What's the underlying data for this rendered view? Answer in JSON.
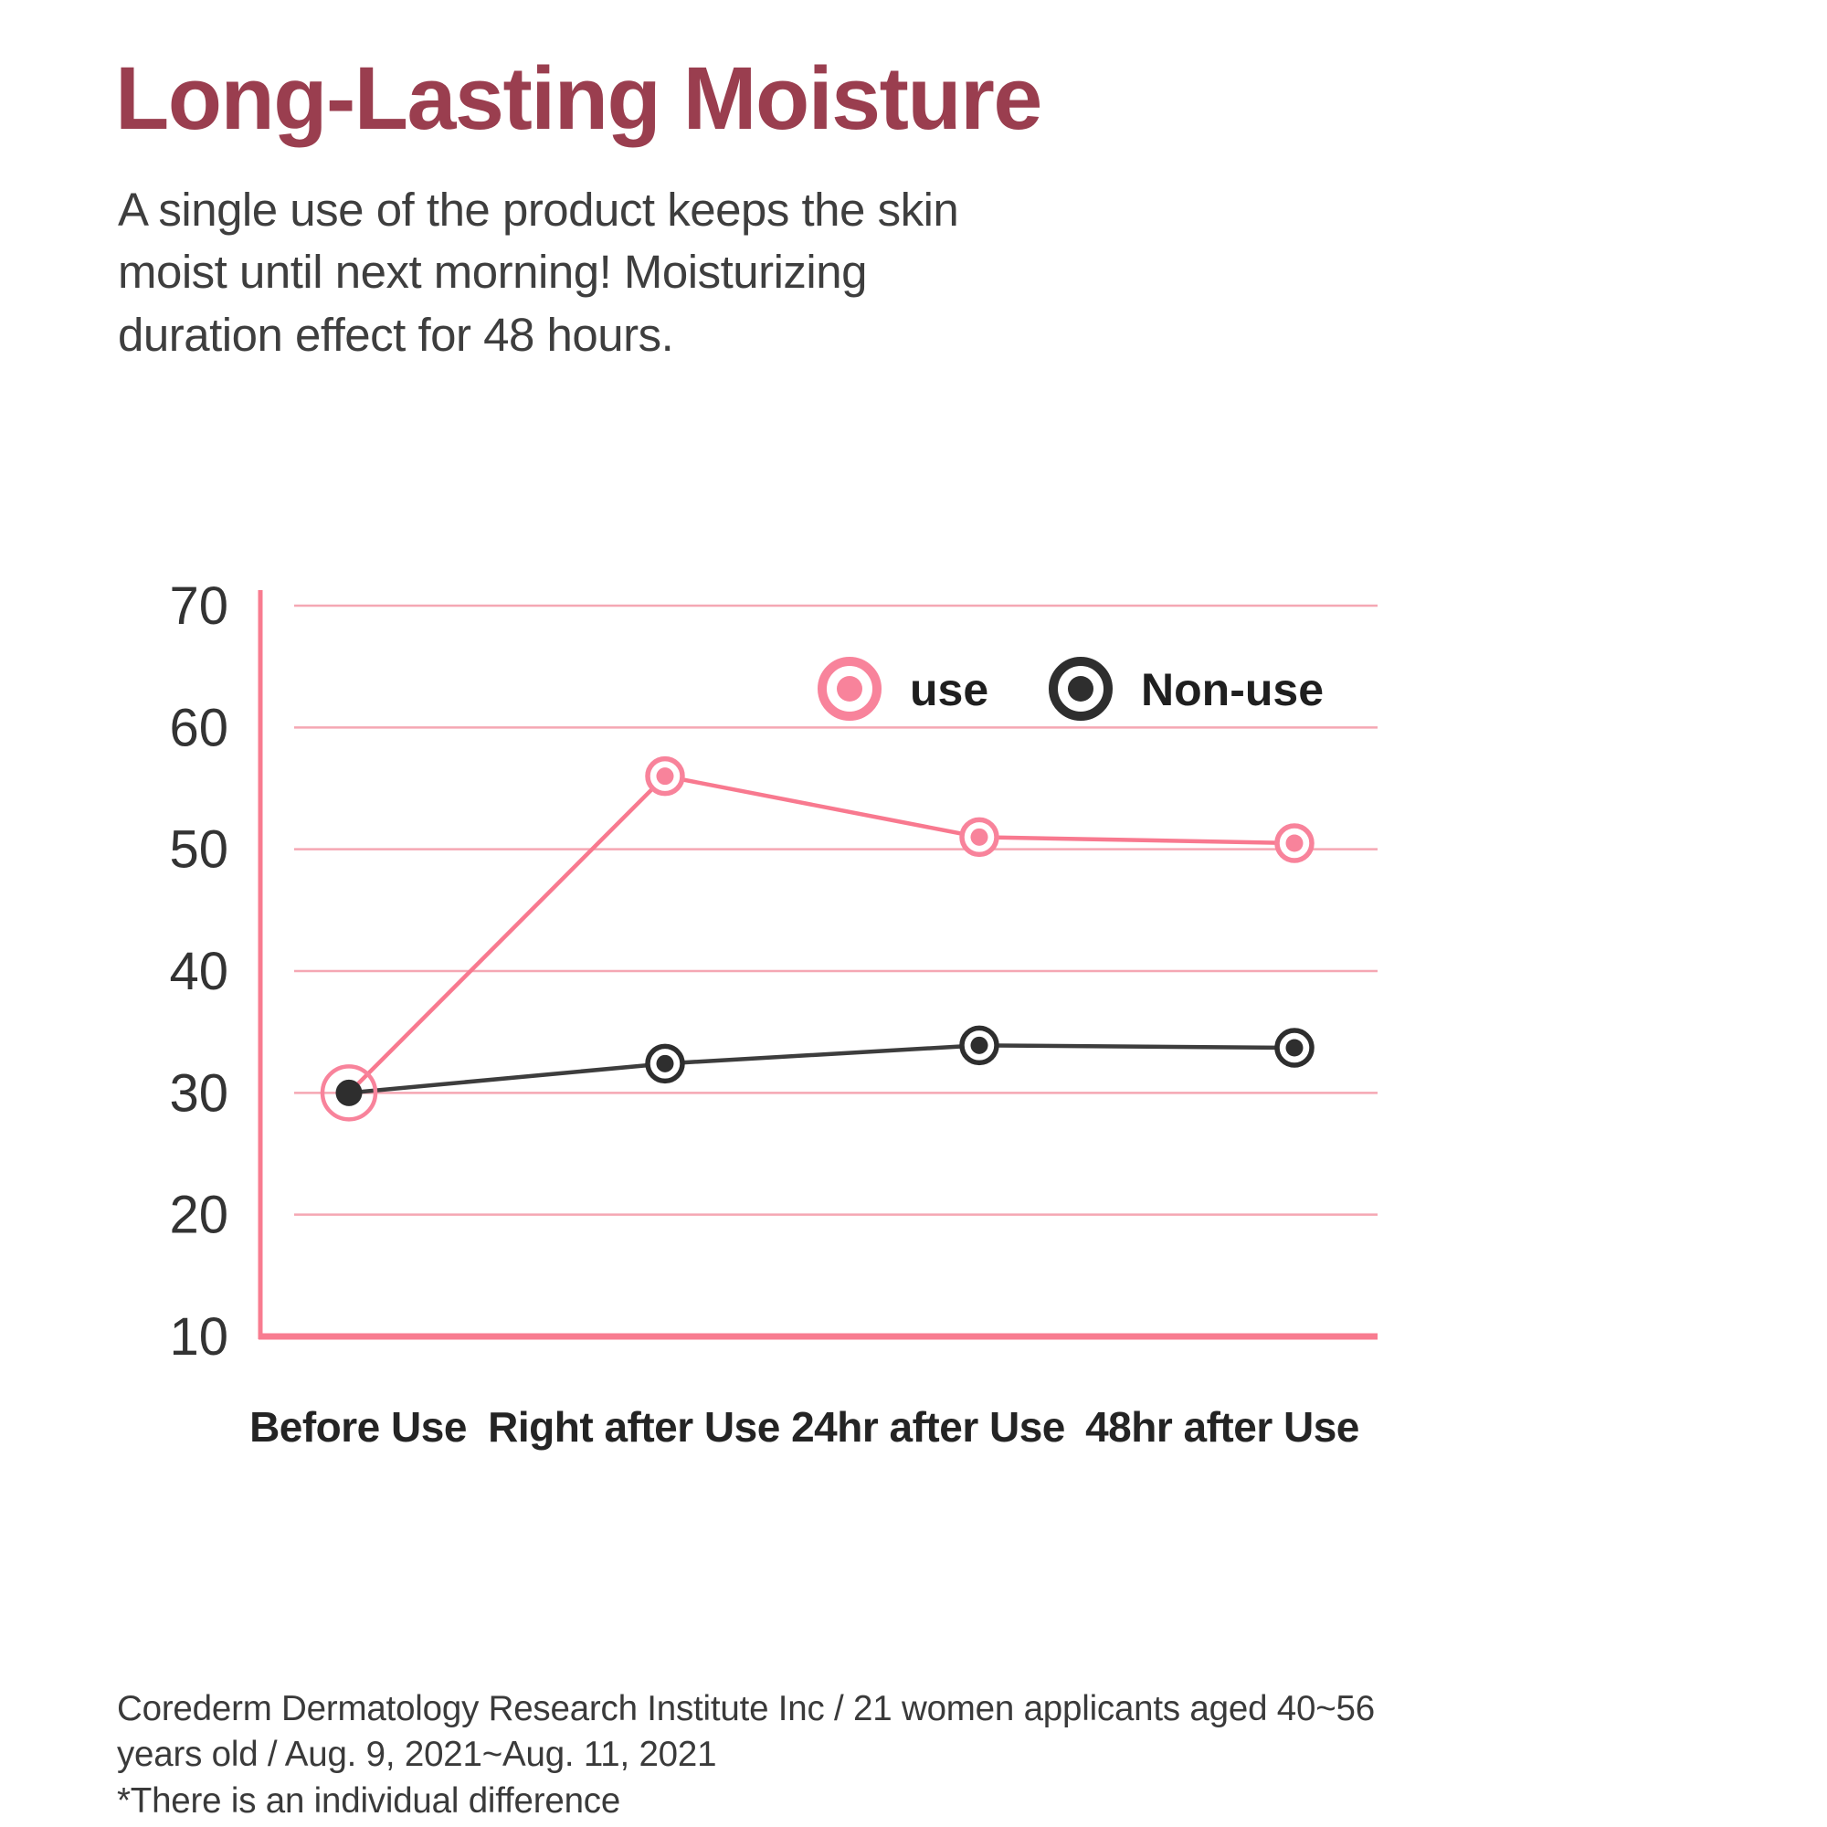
{
  "page": {
    "title": "Long-Lasting Moisture",
    "subtitle_lines": [
      "A single use of the product keeps the skin",
      "moist until next morning!  Moisturizing",
      "duration effect for  48 hours."
    ],
    "footer_lines": [
      "Corederm Dermatology Research Institute Inc / 21 women applicants aged 40~56",
      "years old  / Aug. 9, 2021~Aug. 11,  2021",
      "*There is an individual  difference"
    ]
  },
  "colors": {
    "title": "#9A3E4F",
    "body_text": "#3E3E3E",
    "footer_text": "#3A3A3A",
    "grid_pink": "#F5A7B3",
    "axis_pink": "#F87C90",
    "use_line": "#F8798F",
    "use_marker": "#F8839B",
    "nonuse_line": "#3D3D3D",
    "nonuse_marker": "#2E2E2E",
    "tick_label": "#333333",
    "category_label": "#242424",
    "legend_label": "#1F1F1F"
  },
  "chart_data": {
    "type": "line",
    "title": "",
    "xlabel": "",
    "ylabel": "",
    "categories": [
      "Before Use",
      "Right after Use",
      "24hr after Use",
      "48hr after Use"
    ],
    "series": [
      {
        "name": "use",
        "values": [
          30,
          56,
          51,
          50.5
        ],
        "line_color": "#F8798F",
        "marker_color": "#F8839B"
      },
      {
        "name": "Non-use",
        "values": [
          30,
          32.4,
          33.9,
          33.7
        ],
        "line_color": "#3D3D3D",
        "marker_color": "#2E2E2E"
      }
    ],
    "ylim": [
      10,
      70
    ],
    "yticks": [
      10,
      20,
      30,
      40,
      50,
      60,
      70
    ],
    "grid": "horizontal-pink",
    "legend_position": "top-right-inside"
  }
}
